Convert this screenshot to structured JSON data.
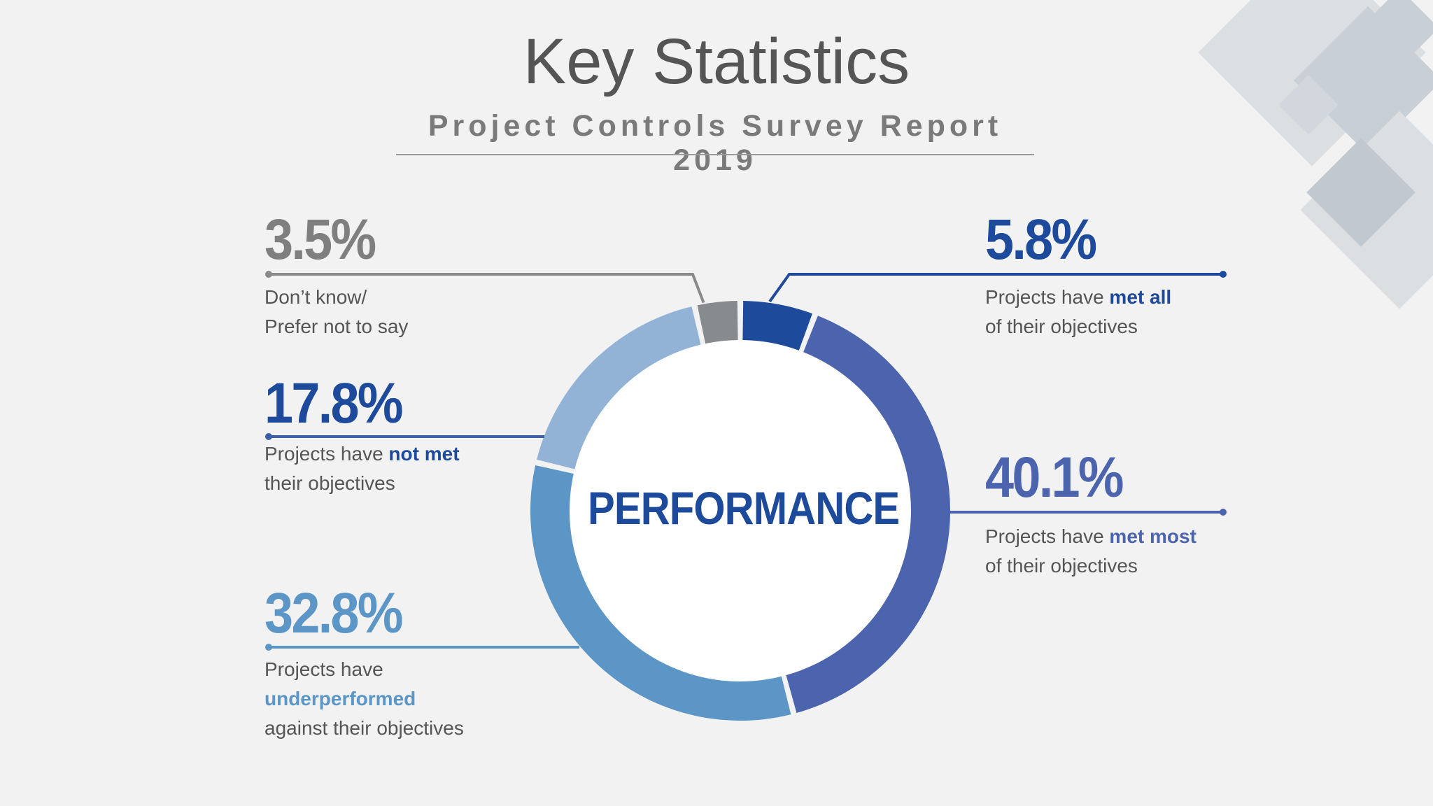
{
  "header": {
    "title": "Key Statistics",
    "subtitle": "Project Controls Survey Report 2019"
  },
  "colors": {
    "background": "#f2f2f3",
    "title": "#555555",
    "dont_know": "#888b8e",
    "met_all": "#1d4a9b",
    "met_most": "#4c63ae",
    "underperformed": "#5c96c6",
    "not_met": "#93b3d6",
    "deco": "#c9ced6"
  },
  "chart_data": {
    "type": "donut",
    "center_label": "PERFORMANCE",
    "slices": [
      {
        "key": "met_all",
        "value": 5.8,
        "label": "5.8%",
        "text_before": "Projects have ",
        "highlight": "met all",
        "text_after": "of their objectives"
      },
      {
        "key": "met_most",
        "value": 40.1,
        "label": "40.1%",
        "text_before": "Projects have ",
        "highlight": "met most",
        "text_after": "of their objectives"
      },
      {
        "key": "underperformed",
        "value": 32.8,
        "label": "32.8%",
        "text_before": "Projects have",
        "highlight": "underperformed",
        "text_after": "against their objectives"
      },
      {
        "key": "not_met",
        "value": 17.8,
        "label": "17.8%",
        "text_before": "Projects have ",
        "highlight": "not met",
        "text_after": "their objectives"
      },
      {
        "key": "dont_know",
        "value": 3.5,
        "label": "3.5%",
        "text_before": "Don’t know/",
        "highlight": "",
        "text_after": "Prefer not to say"
      }
    ]
  }
}
